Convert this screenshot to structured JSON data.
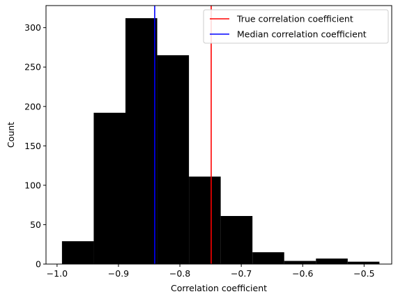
{
  "chart_data": {
    "type": "bar",
    "xlabel": "Correlation coefficient",
    "ylabel": "Count",
    "xlim": [
      -1.018,
      -0.455
    ],
    "ylim": [
      0,
      328
    ],
    "xticks": [
      -1.0,
      -0.9,
      -0.8,
      -0.7,
      -0.6,
      -0.5
    ],
    "xtick_labels": [
      "−1.0",
      "−0.9",
      "−0.8",
      "−0.7",
      "−0.6",
      "−0.5"
    ],
    "yticks": [
      0,
      50,
      100,
      150,
      200,
      250,
      300
    ],
    "ytick_labels": [
      "0",
      "50",
      "100",
      "150",
      "200",
      "250",
      "300"
    ],
    "bar_color": "#000000",
    "bins": [
      {
        "x0": -0.992,
        "x1": -0.9403,
        "count": 29
      },
      {
        "x0": -0.9403,
        "x1": -0.8886,
        "count": 192
      },
      {
        "x0": -0.8886,
        "x1": -0.8369,
        "count": 312
      },
      {
        "x0": -0.8369,
        "x1": -0.7852,
        "count": 265
      },
      {
        "x0": -0.7852,
        "x1": -0.7335,
        "count": 111
      },
      {
        "x0": -0.7335,
        "x1": -0.6818,
        "count": 61
      },
      {
        "x0": -0.6818,
        "x1": -0.6301,
        "count": 15
      },
      {
        "x0": -0.6301,
        "x1": -0.5784,
        "count": 4
      },
      {
        "x0": -0.5784,
        "x1": -0.5267,
        "count": 7
      },
      {
        "x0": -0.5267,
        "x1": -0.475,
        "count": 3
      }
    ],
    "vlines": [
      {
        "name": "True correlation coefficient",
        "x": -0.749,
        "color": "#ff0000"
      },
      {
        "name": "Median correlation coefficient",
        "x": -0.841,
        "color": "#0000ff"
      }
    ],
    "legend_position": "top-right",
    "grid": false
  }
}
